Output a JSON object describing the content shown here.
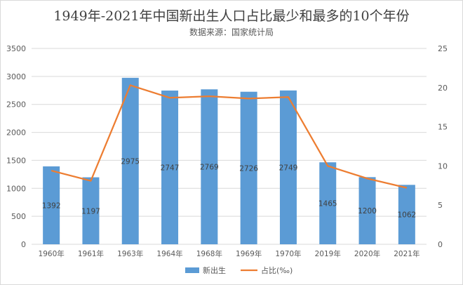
{
  "chart_data": {
    "type": "bar",
    "title": "1949年-2021年中国新出生人口占比最少和最多的10个年份",
    "subtitle": "数据来源：国家统计局",
    "categories": [
      "1960年",
      "1961年",
      "1963年",
      "1964年",
      "1968年",
      "1969年",
      "1970年",
      "2019年",
      "2020年",
      "2021年"
    ],
    "series": [
      {
        "name": "新出生",
        "type": "bar",
        "axis": "left",
        "color": "#5b9bd5",
        "values": [
          1392,
          1197,
          2975,
          2747,
          2769,
          2726,
          2749,
          1465,
          1200,
          1062
        ]
      },
      {
        "name": "占比(‰)",
        "type": "line",
        "axis": "right",
        "color": "#ed7d31",
        "values": [
          9.4,
          8.1,
          20.3,
          18.7,
          18.9,
          18.6,
          18.8,
          10.0,
          8.4,
          7.2
        ]
      }
    ],
    "ylim_left": [
      0,
      3500
    ],
    "yticks_left": [
      0,
      500,
      1000,
      1500,
      2000,
      2500,
      3000,
      3500
    ],
    "ylim_right": [
      0,
      25
    ],
    "yticks_right": [
      0,
      5,
      10,
      15,
      20,
      25
    ],
    "gridlines": true,
    "legend": "bottom",
    "data_labels": "bar values inside bars"
  }
}
